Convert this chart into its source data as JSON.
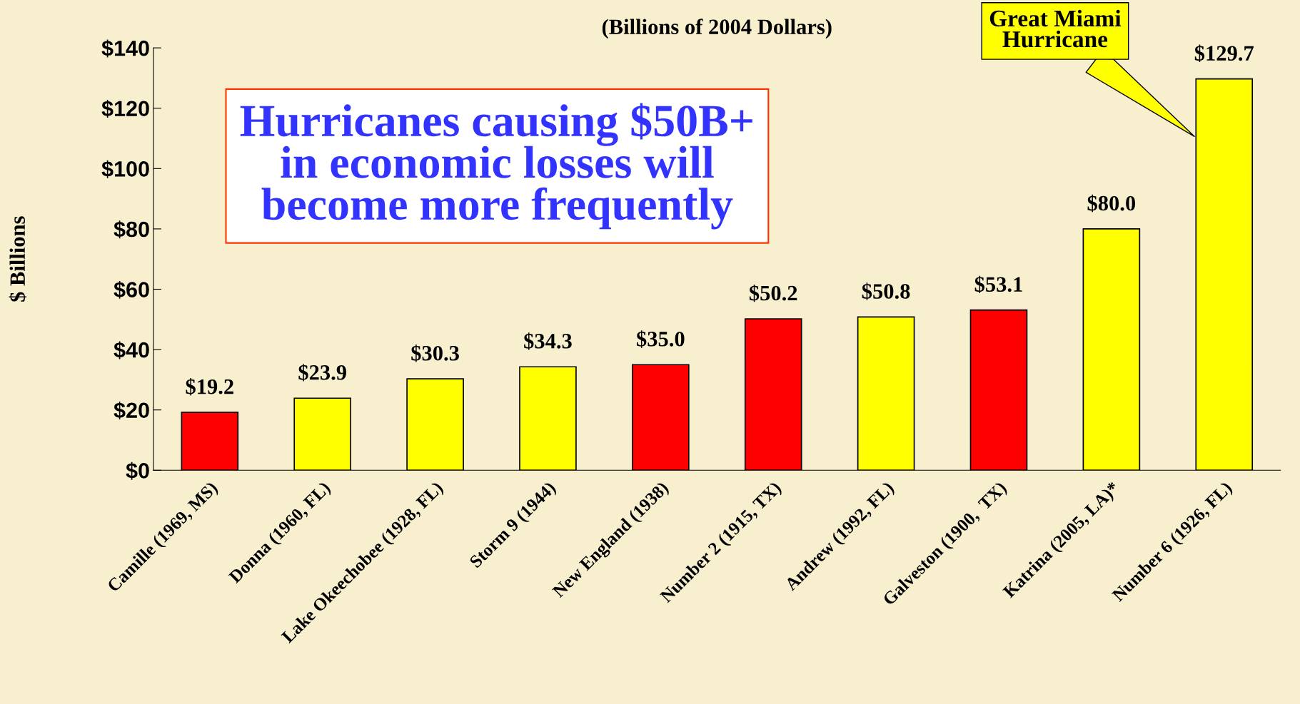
{
  "chart_data": {
    "type": "bar",
    "title": "(Billions of 2004 Dollars)",
    "ylabel": "$ Billions",
    "categories": [
      "Camille (1969, MS)",
      "Donna (1960, FL)",
      "Lake Okeechobee (1928, FL)",
      "Storm 9 (1944)",
      "New England (1938)",
      "Number 2 (1915, TX)",
      "Andrew (1992, FL)",
      "Galveston (1900,  TX)",
      "Katrina (2005, LA)*",
      "Number 6 (1926, FL)"
    ],
    "values": [
      19.2,
      23.9,
      30.3,
      34.3,
      35.0,
      50.2,
      50.8,
      53.1,
      80.0,
      129.7
    ],
    "colors": [
      "#ff0000",
      "#ffff00",
      "#ffff00",
      "#ffff00",
      "#ff0000",
      "#ff0000",
      "#ffff00",
      "#ff0000",
      "#ffff00",
      "#ffff00"
    ],
    "value_labels": [
      "$19.2",
      "$23.9",
      "$30.3",
      "$34.3",
      "$35.0",
      "$50.2",
      "$50.8",
      "$53.1",
      "$80.0",
      "$129.7"
    ],
    "ylim": [
      0,
      140
    ],
    "yticks": [
      {
        "value": 0,
        "label": "$0"
      },
      {
        "value": 20,
        "label": "$20"
      },
      {
        "value": 40,
        "label": "$40"
      },
      {
        "value": 60,
        "label": "$60"
      },
      {
        "value": 80,
        "label": "$80"
      },
      {
        "value": 100,
        "label": "$100"
      },
      {
        "value": 120,
        "label": "$120"
      },
      {
        "value": 140,
        "label": "$140"
      }
    ],
    "grid": false,
    "legend": false,
    "annotations": [
      "Hurricanes causing $50B+\nin economic losses will\nbecome more frequently",
      "Great Miami\nHurricane"
    ]
  }
}
